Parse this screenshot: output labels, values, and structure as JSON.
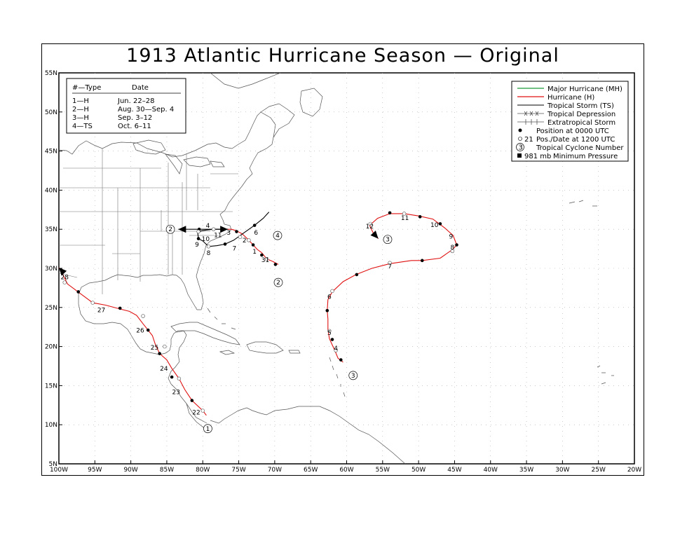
{
  "title": "1913 Atlantic Hurricane Season — Original",
  "map": {
    "lon_range": [
      -100,
      -20
    ],
    "lat_range": [
      5,
      55
    ],
    "lon_ticks": [
      "100W",
      "95W",
      "90W",
      "85W",
      "80W",
      "75W",
      "70W",
      "65W",
      "60W",
      "55W",
      "50W",
      "45W",
      "40W",
      "35W",
      "30W",
      "25W",
      "20W"
    ],
    "lat_ticks": [
      "5N",
      "10N",
      "15N",
      "20N",
      "25N",
      "30N",
      "35N",
      "40N",
      "45N",
      "50N",
      "55N"
    ]
  },
  "storm_table": {
    "header_type": "#—Type",
    "header_date": "Date",
    "rows": [
      {
        "type": "1—H",
        "date": "Jun. 22–28"
      },
      {
        "type": "2—H",
        "date": "Aug. 30—Sep. 4"
      },
      {
        "type": "3—H",
        "date": "Sep. 3–12"
      },
      {
        "type": "4—TS",
        "date": "Oct. 6–11"
      }
    ]
  },
  "legend": {
    "items": [
      {
        "label": "Major Hurricane (MH)",
        "color": "#1a9a3a"
      },
      {
        "label": "Hurricane (H)",
        "color": "#e01010"
      },
      {
        "label": "Tropical Storm (TS)",
        "color": "#000000"
      },
      {
        "label": "Tropical Depression",
        "color": "#555555"
      },
      {
        "label": "Extratropical Storm",
        "color": "#555555"
      },
      {
        "label": "Position at 0000 UTC"
      },
      {
        "label": "Pos./Date at 1200 UTC",
        "marker_text": "21"
      },
      {
        "label": "Tropical Cyclone Number",
        "marker_text": "3"
      },
      {
        "label": "Minimum Pressure",
        "marker_text": "981 mb"
      }
    ]
  },
  "storms": [
    {
      "number": "1",
      "label_pos": [
        -99.3,
        31.5
      ],
      "points": [
        [
          -79.5,
          11.2
        ],
        [
          -80,
          11.8
        ],
        [
          -81.5,
          13.1
        ],
        [
          -82.5,
          14.5
        ],
        [
          -83.3,
          15.9
        ],
        [
          -84.3,
          17.2
        ],
        [
          -85,
          18.3
        ],
        [
          -86,
          19.1
        ],
        [
          -86.6,
          20.3
        ],
        [
          -87,
          21.4
        ],
        [
          -87.6,
          22.1
        ],
        [
          -88.3,
          22.9
        ],
        [
          -89.2,
          24.0
        ],
        [
          -90.2,
          24.5
        ],
        [
          -91.5,
          24.8
        ],
        [
          -93.5,
          25.3
        ],
        [
          -95.3,
          25.6
        ],
        [
          -97.2,
          26.9
        ],
        [
          -98.8,
          28.0
        ],
        [
          -99.6,
          29.5
        ],
        [
          -100,
          30.1
        ]
      ],
      "color": "#e01010",
      "dots": [
        [
          -81.5,
          13.1
        ],
        [
          -84.3,
          16.1
        ],
        [
          -86,
          19.1
        ],
        [
          -87.6,
          22.1
        ],
        [
          -91.5,
          24.9
        ],
        [
          -97.3,
          27.0
        ]
      ],
      "opens": [
        [
          -80,
          11.8
        ],
        [
          -83.3,
          15.9
        ],
        [
          -85.3,
          20.0
        ],
        [
          -88.3,
          23.9
        ],
        [
          -95.3,
          25.6
        ],
        [
          -99.2,
          28.2
        ]
      ],
      "dates": [
        {
          "t": "22",
          "p": [
            -80.9,
            11.3
          ]
        },
        {
          "t": "23",
          "p": [
            -83.7,
            13.9
          ]
        },
        {
          "t": "24",
          "p": [
            -85.4,
            16.9
          ]
        },
        {
          "t": "25",
          "p": [
            -86.7,
            19.6
          ]
        },
        {
          "t": "26",
          "p": [
            -88.7,
            21.8
          ]
        },
        {
          "t": "27",
          "p": [
            -94.1,
            24.4
          ]
        },
        {
          "t": "28",
          "p": [
            -99.2,
            28.6
          ]
        }
      ],
      "num_pos": [
        -79.3,
        9.5
      ]
    },
    {
      "number": "2",
      "points": [
        [
          -69.5,
          30.5
        ],
        [
          -70.3,
          30.9
        ],
        [
          -71.1,
          31.2
        ],
        [
          -71.8,
          32.0
        ],
        [
          -72.4,
          32.4
        ],
        [
          -73.0,
          33.0
        ],
        [
          -73.6,
          33.6
        ],
        [
          -74.5,
          34.4
        ],
        [
          -75.3,
          34.8
        ],
        [
          -76,
          35.0
        ],
        [
          -77,
          35.0
        ],
        [
          -78,
          35.0
        ],
        [
          -79,
          35.0
        ],
        [
          -80.5,
          35.0
        ],
        [
          -82,
          35.0
        ],
        [
          -83.4,
          35.0
        ]
      ],
      "color_segments": true,
      "dots": [
        [
          -69.9,
          30.5
        ],
        [
          -71.8,
          31.7
        ],
        [
          -73.0,
          33.0
        ],
        [
          -75.3,
          34.7
        ],
        [
          -78.5,
          35.0
        ],
        [
          -80.5,
          35.0
        ]
      ],
      "opens": [
        [
          -71.1,
          31.2
        ],
        [
          -73.6,
          33.6
        ]
      ],
      "dates": [
        {
          "t": "31",
          "p": [
            -71.3,
            30.8
          ]
        },
        {
          "t": "1",
          "p": [
            -72.8,
            31.9
          ]
        },
        {
          "t": "2",
          "p": [
            -74.2,
            33.3
          ]
        },
        {
          "t": "3",
          "p": [
            -76.4,
            34.3
          ]
        },
        {
          "t": "4",
          "p": [
            -79.3,
            35.2
          ]
        }
      ],
      "num_pos": [
        -69.5,
        28.2
      ],
      "num2_pos": [
        -84.5,
        35.0
      ]
    },
    {
      "number": "3",
      "points": [
        [
          -60.5,
          18.0
        ],
        [
          -61.2,
          18.5
        ],
        [
          -61.6,
          19.4
        ],
        [
          -62.0,
          20.2
        ],
        [
          -62.4,
          21.0
        ],
        [
          -62.6,
          22.2
        ],
        [
          -62.6,
          23.5
        ],
        [
          -62.7,
          24.6
        ],
        [
          -62.6,
          26.0
        ],
        [
          -62.0,
          27.0
        ],
        [
          -60.5,
          28.3
        ],
        [
          -58.7,
          29.2
        ],
        [
          -56.5,
          30.0
        ],
        [
          -54,
          30.6
        ],
        [
          -51,
          31.0
        ],
        [
          -49.5,
          31.0
        ],
        [
          -47,
          31.3
        ],
        [
          -45.3,
          32.4
        ],
        [
          -44.7,
          33.0
        ],
        [
          -45.2,
          34.2
        ],
        [
          -46.4,
          35.2
        ],
        [
          -48,
          36.3
        ],
        [
          -50,
          36.7
        ],
        [
          -52,
          37.0
        ],
        [
          -54,
          37.0
        ],
        [
          -55.7,
          36.4
        ],
        [
          -56.8,
          35.5
        ],
        [
          -56.3,
          34.5
        ],
        [
          -55.6,
          33.8
        ]
      ],
      "color": "#e01010",
      "dots": [
        [
          -60.8,
          18.3
        ],
        [
          -62.0,
          20.9
        ],
        [
          -62.7,
          24.6
        ],
        [
          -58.6,
          29.2
        ],
        [
          -49.5,
          31.0
        ],
        [
          -44.7,
          33.0
        ],
        [
          -47.0,
          35.7
        ],
        [
          -49.8,
          36.6
        ],
        [
          -54.0,
          37.1
        ]
      ],
      "opens": [
        [
          -61.5,
          19.5
        ],
        [
          -62.4,
          22.0
        ],
        [
          -62.0,
          27.1
        ],
        [
          -54.0,
          30.7
        ],
        [
          -45.3,
          32.2
        ],
        [
          -52.0,
          37.0
        ],
        [
          -56.7,
          35.7
        ]
      ],
      "dates": [
        {
          "t": "4",
          "p": [
            -61.5,
            19.5
          ]
        },
        {
          "t": "5",
          "p": [
            -62.4,
            21.5
          ]
        },
        {
          "t": "6",
          "p": [
            -62.4,
            26.1
          ]
        },
        {
          "t": "7",
          "p": [
            -54,
            30.0
          ]
        },
        {
          "t": "8",
          "p": [
            -45.3,
            32.4
          ]
        },
        {
          "t": "9",
          "p": [
            -45.5,
            33.8
          ]
        },
        {
          "t": "10",
          "p": [
            -47.8,
            35.3
          ]
        },
        {
          "t": "11",
          "p": [
            -51.9,
            36.2
          ]
        },
        {
          "t": "12",
          "p": [
            -56.8,
            35.1
          ]
        }
      ],
      "num_pos": [
        -59.1,
        16.3
      ],
      "num2_pos": [
        -54.3,
        33.7
      ]
    },
    {
      "number": "4",
      "points": [
        [
          -70.8,
          37.2
        ],
        [
          -71.6,
          36.4
        ],
        [
          -72.8,
          35.5
        ],
        [
          -74.2,
          34.6
        ],
        [
          -75.7,
          33.6
        ],
        [
          -76.9,
          33.1
        ],
        [
          -78,
          32.9
        ],
        [
          -79.2,
          32.8
        ],
        [
          -80,
          33.5
        ],
        [
          -80.6,
          33.8
        ],
        [
          -80.7,
          34.5
        ],
        [
          -80.2,
          34.8
        ],
        [
          -79.5,
          34.9
        ],
        [
          -78.5,
          35.0
        ],
        [
          -77.5,
          35.0
        ],
        [
          -76.5,
          35.0
        ]
      ],
      "color": "#000",
      "dots": [
        [
          -72.8,
          35.5
        ],
        [
          -76.9,
          33.1
        ],
        [
          -80.6,
          33.8
        ]
      ],
      "opens": [
        [
          -74.8,
          34.0
        ],
        [
          -79.2,
          32.8
        ],
        [
          -80.6,
          34.7
        ],
        [
          -78.5,
          35.0
        ]
      ],
      "dates": [
        {
          "t": "6",
          "p": [
            -72.6,
            34.3
          ]
        },
        {
          "t": "7",
          "p": [
            -75.6,
            32.3
          ]
        },
        {
          "t": "8",
          "p": [
            -79.2,
            31.7
          ]
        },
        {
          "t": "9",
          "p": [
            -80.8,
            32.8
          ]
        },
        {
          "t": "10",
          "p": [
            -79.6,
            33.5
          ]
        },
        {
          "t": "11",
          "p": [
            -77.9,
            34.0
          ]
        }
      ],
      "num_pos": [
        -69.6,
        34.2
      ]
    }
  ],
  "colors": {
    "hurricane": "#e01010",
    "storm": "#000000",
    "coast": "#444444",
    "grid": "#9a9a9a"
  }
}
